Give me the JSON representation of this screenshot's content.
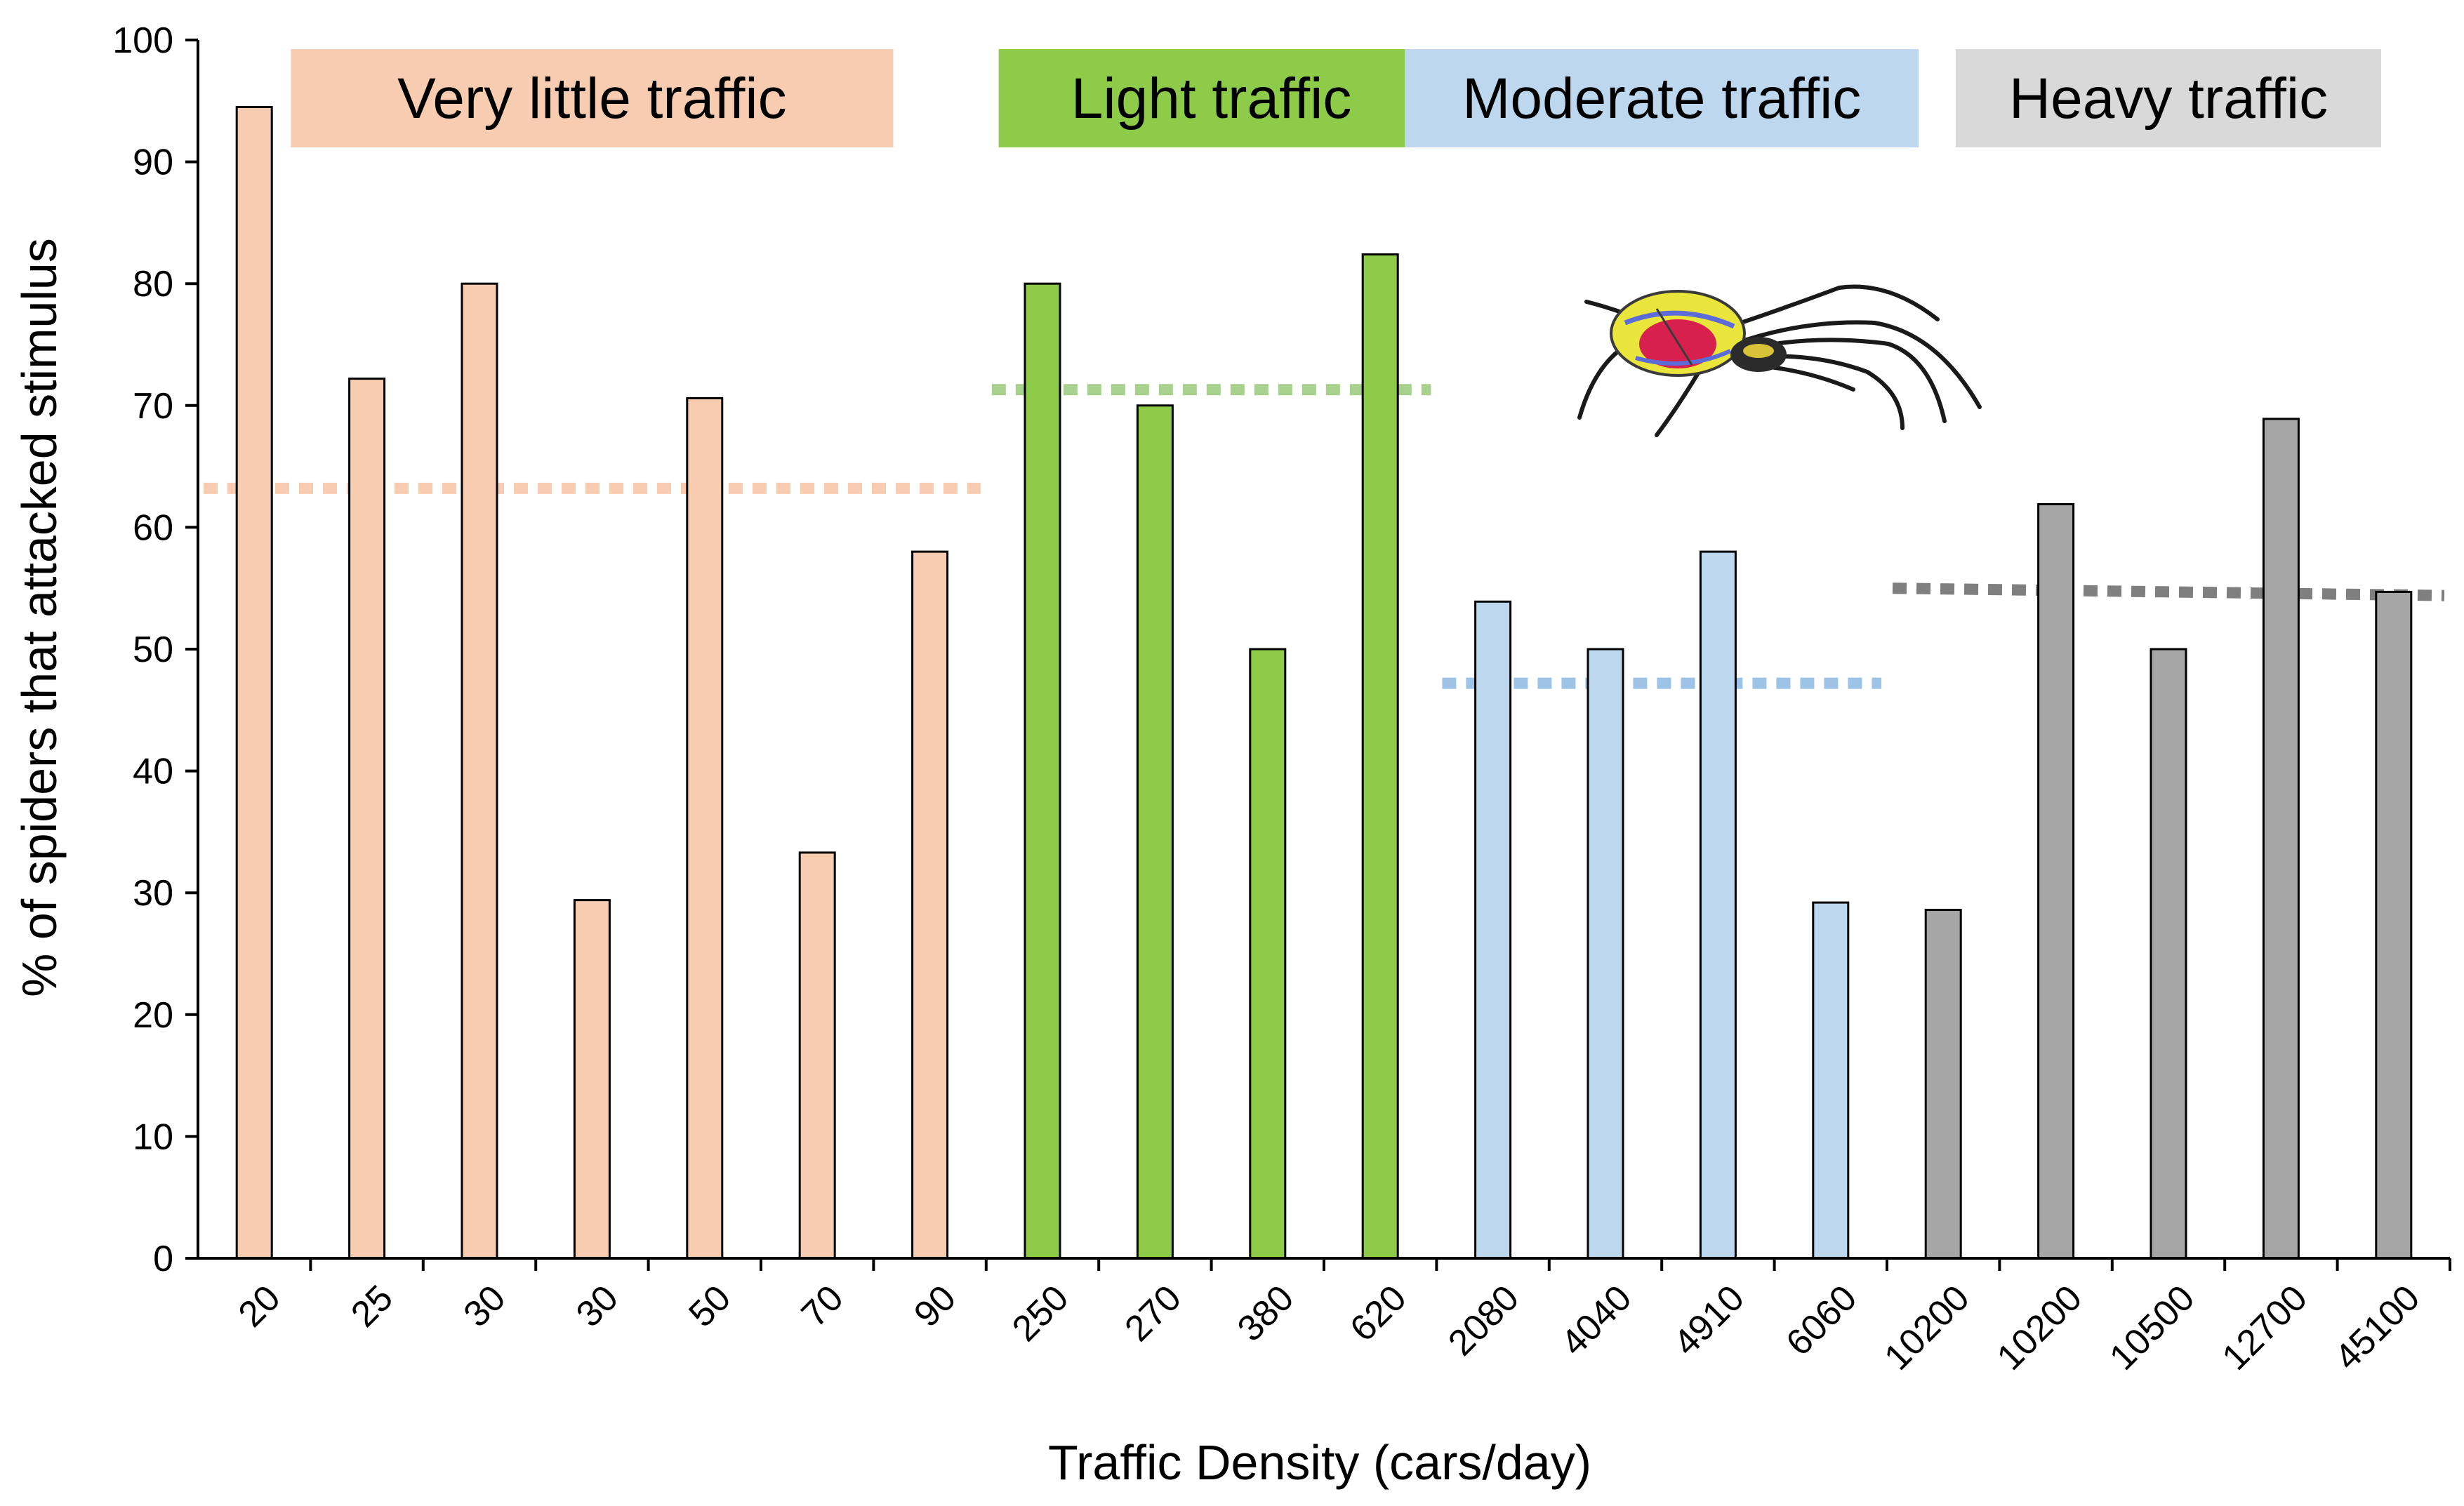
{
  "chart_data": {
    "type": "bar",
    "title": "",
    "xlabel": "Traffic Density (cars/day)",
    "ylabel": "% of spiders that attacked stimulus",
    "ylim": [
      0,
      100
    ],
    "yticks": [
      "0",
      "10",
      "20",
      "30",
      "40",
      "50",
      "60",
      "70",
      "80",
      "90",
      "100"
    ],
    "categories": [
      "20",
      "25",
      "30",
      "30",
      "50",
      "70",
      "90",
      "250",
      "270",
      "380",
      "620",
      "2080",
      "4040",
      "4910",
      "6060",
      "10200",
      "10200",
      "10500",
      "12700",
      "45100"
    ],
    "values": [
      94.5,
      72.2,
      80,
      29.4,
      70.6,
      33.3,
      58,
      80,
      70,
      50,
      82.4,
      53.9,
      50,
      58,
      29.2,
      28.6,
      61.9,
      50,
      68.9,
      54.7
    ],
    "groups": [
      {
        "name": "Very little traffic",
        "start": 0,
        "end": 6,
        "color": "#f8ccb0",
        "label_bg": "#f8ccb0",
        "mean": 63.2
      },
      {
        "name": "Light traffic",
        "start": 7,
        "end": 10,
        "color": "#8ecb48",
        "label_bg": "#8ecb48",
        "mean": 71.3
      },
      {
        "name": "Moderate traffic",
        "start": 11,
        "end": 14,
        "color": "#bdd7ee",
        "label_bg": "#bdd7ee",
        "mean": 47.2
      },
      {
        "name": "Heavy traffic",
        "start": 15,
        "end": 19,
        "color": "#a6a6a6",
        "label_bg": "#d9d9d9",
        "mean_start": 55.0,
        "mean_end": 54.4
      }
    ],
    "mean_line_colors": [
      "#f8ccb0",
      "#a9d18e",
      "#9dc3e6",
      "#7f7f7f"
    ]
  },
  "decoration": {
    "spider_icon": "spider-icon"
  }
}
